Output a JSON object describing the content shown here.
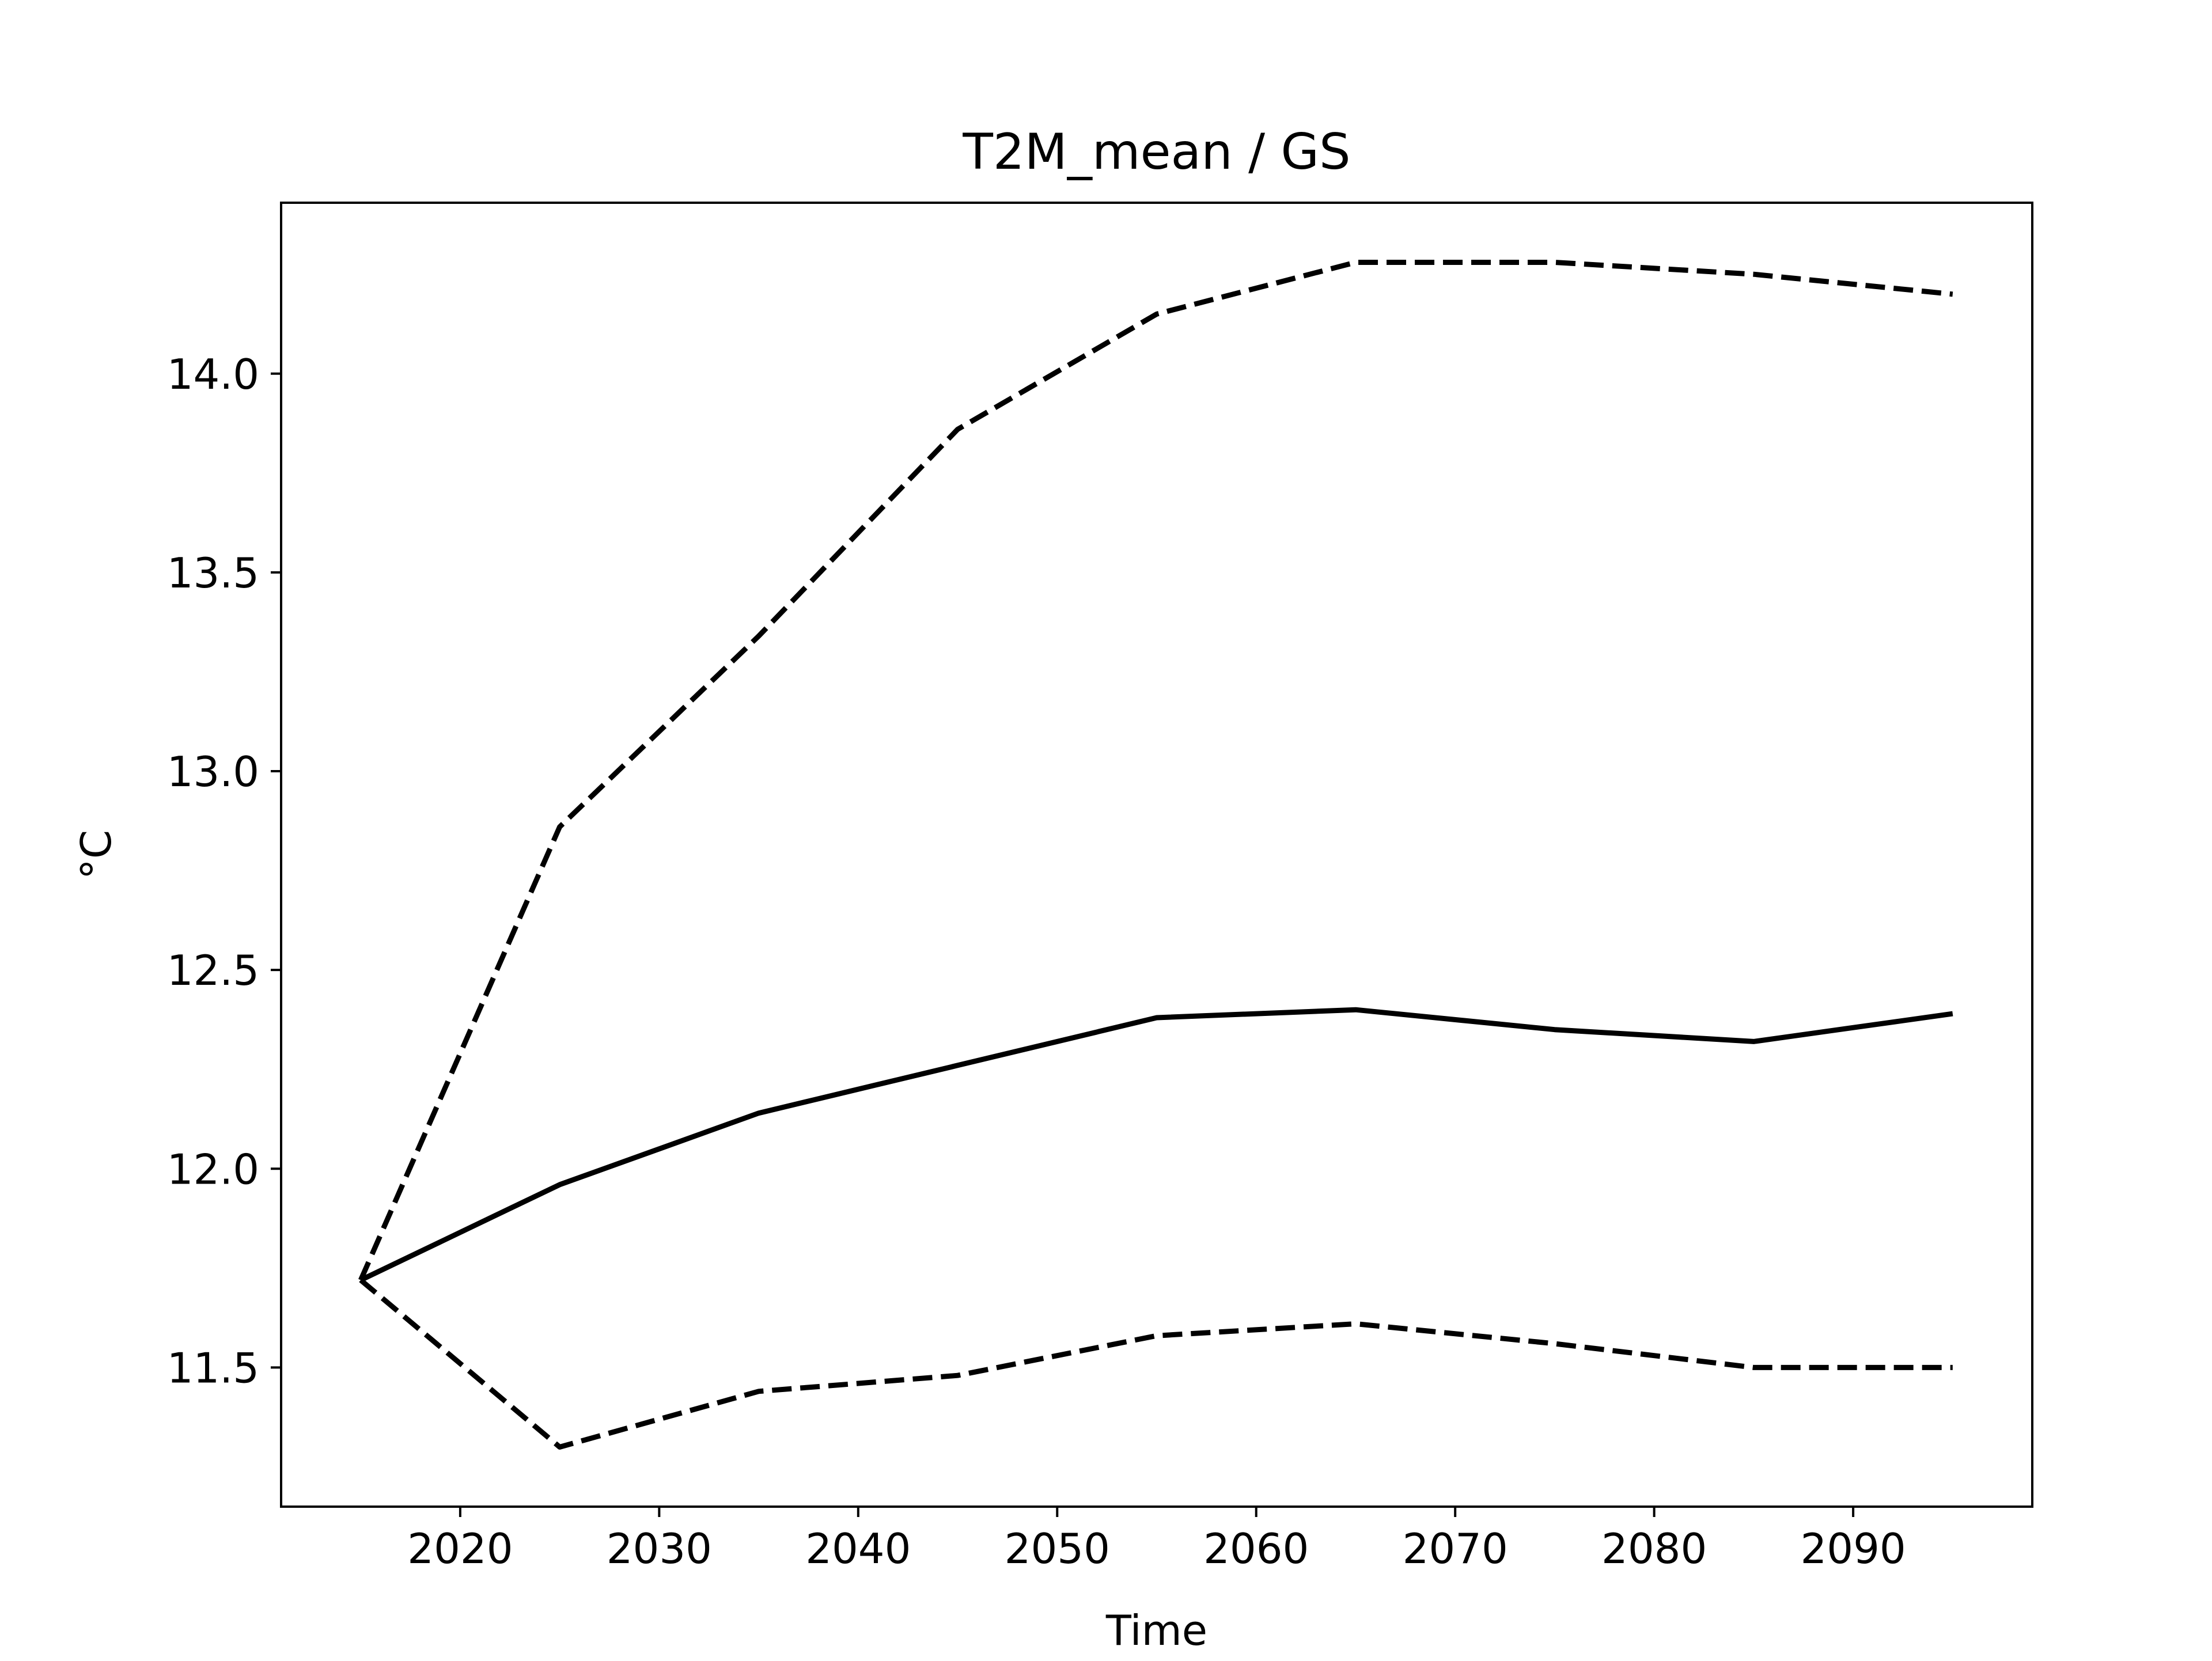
{
  "chart_data": {
    "type": "line",
    "title": "T2M_mean / GS",
    "xlabel": "Time",
    "ylabel": "°C",
    "xlim": [
      2011,
      2099
    ],
    "ylim": [
      11.15,
      14.43
    ],
    "x_ticks": [
      2020,
      2030,
      2040,
      2050,
      2060,
      2070,
      2080,
      2090
    ],
    "y_ticks": [
      11.5,
      12.0,
      12.5,
      13.0,
      13.5,
      14.0
    ],
    "x_tick_labels": [
      "2020",
      "2030",
      "2040",
      "2050",
      "2060",
      "2070",
      "2080",
      "2090"
    ],
    "y_tick_labels": [
      "11.5",
      "12.0",
      "12.5",
      "13.0",
      "13.5",
      "14.0"
    ],
    "grid": false,
    "legend": "none",
    "x": [
      2015,
      2025,
      2035,
      2045,
      2055,
      2065,
      2075,
      2085,
      2095
    ],
    "series": [
      {
        "style": "solid",
        "color": "#000000",
        "values": [
          11.72,
          11.96,
          12.14,
          12.26,
          12.38,
          12.4,
          12.35,
          12.32,
          12.39
        ]
      },
      {
        "style": "dashed",
        "color": "#000000",
        "values": [
          11.72,
          12.86,
          13.34,
          13.86,
          14.15,
          14.28,
          14.28,
          14.25,
          14.2
        ]
      },
      {
        "style": "dashed",
        "color": "#000000",
        "values": [
          11.72,
          11.3,
          11.44,
          11.48,
          11.58,
          11.61,
          11.56,
          11.5,
          11.5
        ]
      }
    ]
  }
}
